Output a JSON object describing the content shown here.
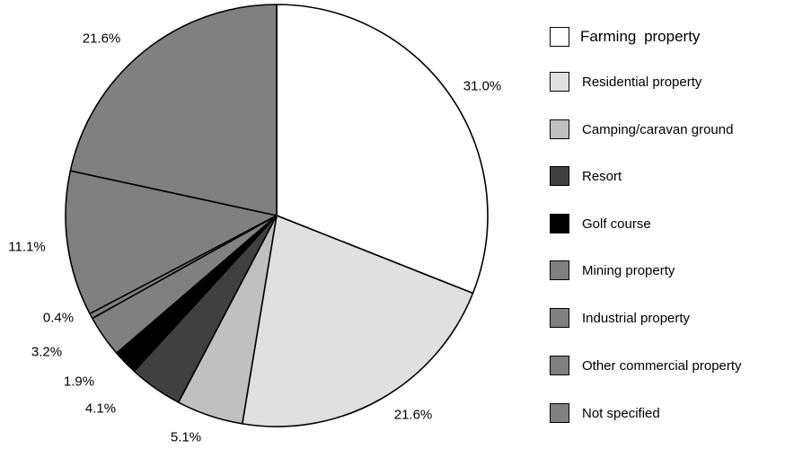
{
  "chart_data": {
    "type": "pie",
    "start": "top",
    "direction": "clockwise",
    "slices": [
      {
        "label": "Farming property",
        "value": 31.0,
        "value_label": "31.0%",
        "color": "#ffffff"
      },
      {
        "label": "Residential property",
        "value": 21.6,
        "value_label": "21.6%",
        "color": "#e0e0e0"
      },
      {
        "label": "Camping/caravan ground",
        "value": 5.1,
        "value_label": "5.1%",
        "color": "#c0c0c0"
      },
      {
        "label": "Resort",
        "value": 4.1,
        "value_label": "4.1%",
        "color": "#404040"
      },
      {
        "label": "Golf course",
        "value": 1.9,
        "value_label": "1.9%",
        "color": "#000000"
      },
      {
        "label": "Mining property",
        "value": 3.2,
        "value_label": "3.2%",
        "color": "#808080"
      },
      {
        "label": "Industrial property",
        "value": 0.4,
        "value_label": "0.4%",
        "color": "#808080"
      },
      {
        "label": "Other commercial property",
        "value": 11.1,
        "value_label": "11.1%",
        "color": "#808080"
      },
      {
        "label": "Not specified",
        "value": 21.6,
        "value_label": "21.6%",
        "color": "#808080"
      }
    ],
    "legend": {
      "placement": "right",
      "entries": [
        "Farming property",
        "Residential property",
        "Camping/caravan ground",
        "Resort",
        "Golf course",
        "Mining property",
        "Industrial property",
        "Other commercial property",
        "Not specified"
      ]
    }
  }
}
